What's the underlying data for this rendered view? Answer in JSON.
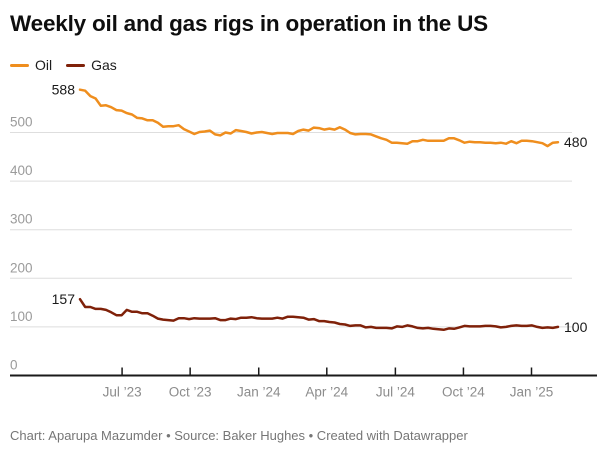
{
  "header": {
    "title": "Weekly oil and gas rigs in operation in the US"
  },
  "legend": {
    "items": [
      {
        "label": "Oil",
        "color": "#EF8E1E"
      },
      {
        "label": "Gas",
        "color": "#7F2109"
      }
    ]
  },
  "footer": {
    "text": "Chart: Aparupa Mazumder • Source: Baker Hughes • Created with Datawrapper"
  },
  "chart_data": {
    "type": "line",
    "title": "Weekly oil and gas rigs in operation in the US",
    "x_unit": "week",
    "x_range_description": "Weekly values from early May 2023 through early February 2025",
    "ylim": [
      0,
      612
    ],
    "grid": "horizontal",
    "legend_position": "top-left",
    "y_axis": {
      "ticks": [
        0,
        100,
        200,
        300,
        400,
        500
      ],
      "baseline_value": 0
    },
    "x_axis": {
      "ticks": [
        {
          "label": "Jul ’23",
          "week": 8.1
        },
        {
          "label": "Oct ’23",
          "week": 21.2
        },
        {
          "label": "Jan ’24",
          "week": 34.4
        },
        {
          "label": "Apr ’24",
          "week": 47.5
        },
        {
          "label": "Jul ’24",
          "week": 60.7
        },
        {
          "label": "Oct ’24",
          "week": 73.8
        },
        {
          "label": "Jan ’25",
          "week": 86.9
        }
      ]
    },
    "annotations": {
      "oil_start_label": "588",
      "gas_start_label": "157",
      "oil_end_label": "480",
      "gas_end_label": "100"
    },
    "series": [
      {
        "name": "Oil",
        "color": "#EF8E1E",
        "start_value": 588,
        "end_value": 480,
        "values": [
          588,
          586,
          575,
          570,
          555,
          556,
          552,
          546,
          545,
          540,
          537,
          530,
          529,
          525,
          525,
          520,
          512,
          513,
          513,
          515,
          507,
          502,
          497,
          501,
          502,
          504,
          496,
          494,
          500,
          498,
          505,
          503,
          501,
          498,
          500,
          501,
          499,
          497,
          499,
          499,
          499,
          497,
          503,
          506,
          504,
          510,
          509,
          506,
          508,
          506,
          511,
          506,
          499,
          496,
          497,
          497,
          496,
          492,
          488,
          485,
          479,
          479,
          478,
          477,
          482,
          482,
          485,
          483,
          483,
          483,
          483,
          488,
          488,
          484,
          479,
          481,
          480,
          480,
          479,
          479,
          478,
          479,
          477,
          482,
          478,
          483,
          483,
          482,
          480,
          478,
          472,
          479,
          480
        ]
      },
      {
        "name": "Gas",
        "color": "#7F2109",
        "start_value": 157,
        "end_value": 100,
        "values": [
          157,
          141,
          141,
          137,
          137,
          135,
          130,
          124,
          124,
          135,
          131,
          131,
          128,
          128,
          123,
          117,
          115,
          114,
          113,
          118,
          118,
          116,
          118,
          117,
          117,
          117,
          118,
          114,
          114,
          117,
          116,
          119,
          119,
          120,
          118,
          117,
          117,
          117,
          119,
          117,
          121,
          121,
          120,
          119,
          115,
          116,
          112,
          112,
          110,
          109,
          106,
          105,
          102,
          103,
          103,
          99,
          100,
          98,
          98,
          98,
          97,
          101,
          100,
          103,
          101,
          98,
          97,
          98,
          96,
          95,
          94,
          97,
          96,
          99,
          102,
          101,
          101,
          101,
          102,
          102,
          101,
          99,
          100,
          102,
          103,
          102,
          102,
          103,
          100,
          98,
          99,
          98,
          100
        ]
      }
    ],
    "style": {
      "gridline_color": "#dedede",
      "baseline_color": "#1a1a1a",
      "tick_color": "#1a1a1a",
      "y_label_color": "#9b9b9b",
      "x_label_color": "#8c8c8c",
      "value_label_color": "#1a1a1a"
    }
  }
}
